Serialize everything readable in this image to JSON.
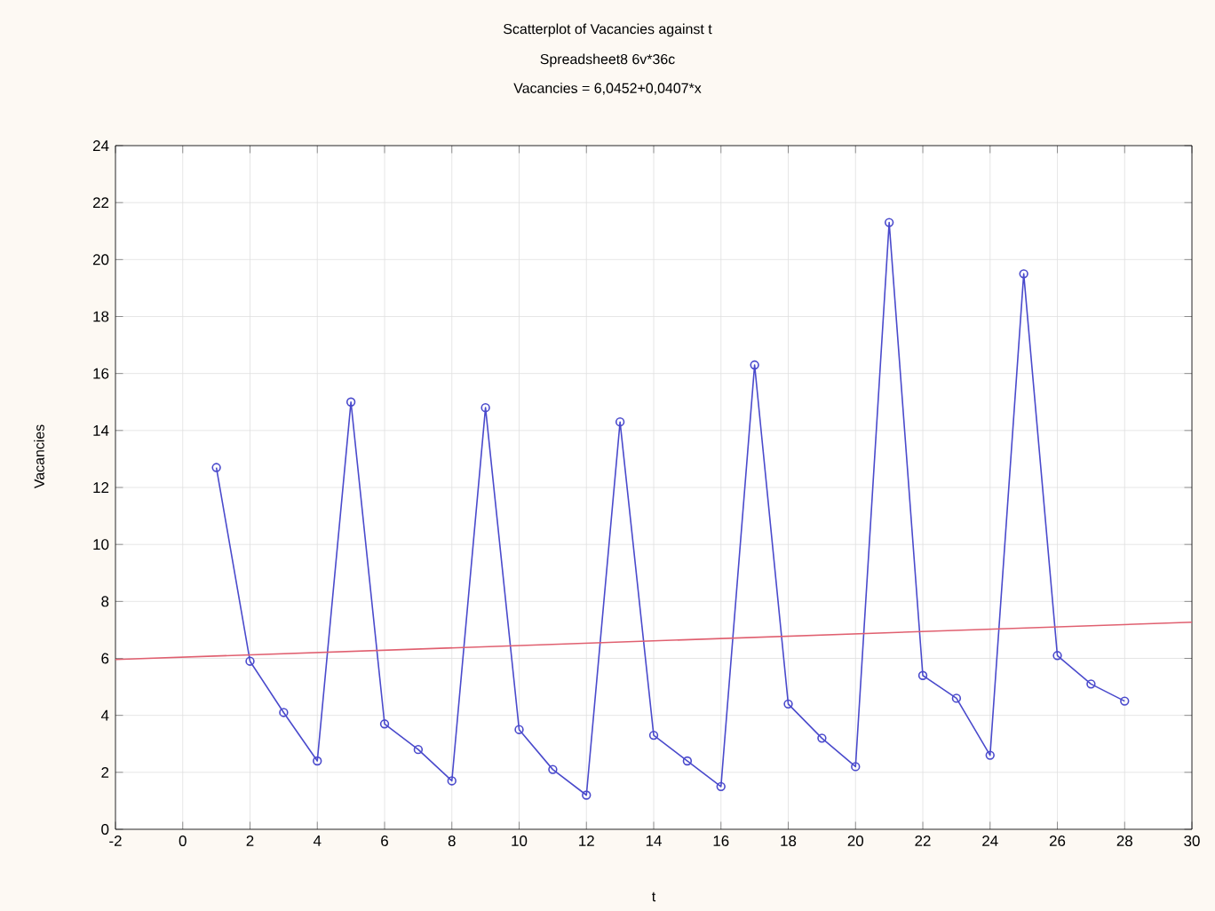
{
  "chart_data": {
    "type": "line",
    "title": "Scatterplot of Vacancies against t",
    "subtitle": "Spreadsheet8 6v*36c",
    "annotations": [
      "Vacancies = 6,0452+0,0407*x"
    ],
    "xlabel": "t",
    "ylabel": "Vacancies",
    "series": [
      {
        "marker": "circle",
        "color": "#4a4acc",
        "x": [
          1,
          2,
          3,
          4,
          5,
          6,
          7,
          8,
          9,
          10,
          11,
          12,
          13,
          14,
          15,
          16,
          17,
          18,
          19,
          20,
          21,
          22,
          23,
          24,
          25,
          26,
          27,
          28
        ],
        "values": [
          12.7,
          5.9,
          4.1,
          2.4,
          15.0,
          3.7,
          2.8,
          1.7,
          14.8,
          3.5,
          2.1,
          1.2,
          14.3,
          3.3,
          2.4,
          1.5,
          16.3,
          4.4,
          3.2,
          2.2,
          21.3,
          5.4,
          4.6,
          2.6,
          19.5,
          6.1,
          5.1,
          4.5
        ]
      },
      {
        "type": "line",
        "marker": "none",
        "color": "#e06070",
        "x": [
          -2,
          30
        ],
        "values": [
          5.96,
          7.27
        ]
      }
    ],
    "xlim": [
      -2,
      30
    ],
    "ylim": [
      0,
      24
    ],
    "xticks": [
      -2,
      0,
      2,
      4,
      6,
      8,
      10,
      12,
      14,
      16,
      18,
      20,
      22,
      24,
      26,
      28,
      30
    ],
    "yticks": [
      0,
      2,
      4,
      6,
      8,
      10,
      12,
      14,
      16,
      18,
      20,
      22,
      24
    ],
    "grid": true,
    "line_style": "solid"
  }
}
